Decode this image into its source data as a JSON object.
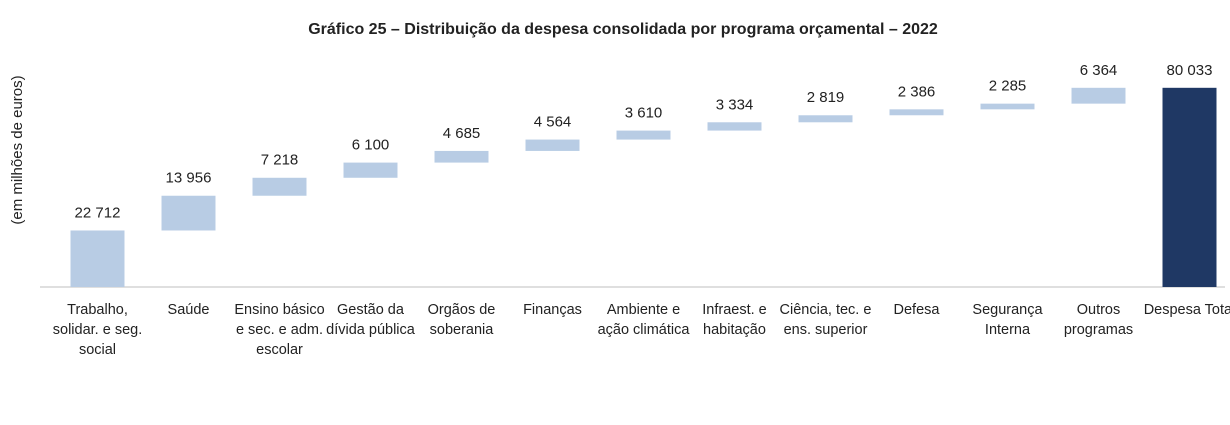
{
  "chart_data": {
    "type": "waterfall",
    "title": "Gráfico 25 – Distribuição da despesa consolidada por programa orçamental – 2022",
    "y_label": "(em milhões de euros)",
    "categories": [
      "Trabalho, solidar. e seg. social",
      "Saúde",
      "Ensino básico e sec. e adm. escolar",
      "Gestão da dívida pública",
      "Orgãos de soberania",
      "Finanças",
      "Ambiente e ação climática",
      "Infraest. e habitação",
      "Ciência, tec. e ens. superior",
      "Defesa",
      "Segurança Interna",
      "Outros programas",
      "Despesa Total"
    ],
    "values": [
      22712,
      13956,
      7218,
      6100,
      4685,
      4564,
      3610,
      3334,
      2819,
      2386,
      2285,
      6364,
      80033
    ],
    "value_labels": [
      "22 712",
      "13 956",
      "7 218",
      "6 100",
      "4 685",
      "4 564",
      "3 610",
      "3 334",
      "2 819",
      "2 386",
      "2 285",
      "6 364",
      "80 033"
    ],
    "is_total": [
      false,
      false,
      false,
      false,
      false,
      false,
      false,
      false,
      false,
      false,
      false,
      false,
      true
    ],
    "color": "#b8cce4",
    "total_color": "#1f3864",
    "ylim": [
      0,
      90000
    ]
  }
}
